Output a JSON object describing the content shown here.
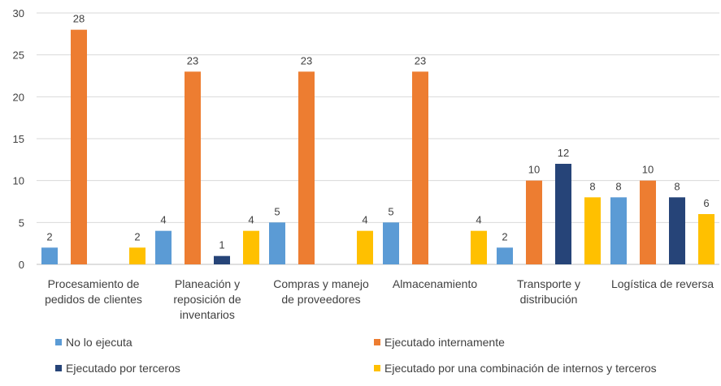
{
  "chart_data": {
    "type": "bar",
    "title": "",
    "xlabel": "",
    "ylabel": "",
    "ylim": [
      0,
      30
    ],
    "yticks": [
      0,
      5,
      10,
      15,
      20,
      25,
      30
    ],
    "grid": true,
    "legend_position": "bottom",
    "categories": [
      [
        "Procesamiento de",
        "pedidos de clientes"
      ],
      [
        "Planeación y",
        "reposición de",
        "inventarios"
      ],
      [
        "Compras y manejo",
        "de proveedores"
      ],
      [
        "Almacenamiento"
      ],
      [
        "Transporte y",
        "distribución"
      ],
      [
        "Logística de reversa"
      ]
    ],
    "series": [
      {
        "name": "No lo ejecuta",
        "color": "#5b9bd5",
        "values": [
          2,
          4,
          5,
          5,
          2,
          8
        ]
      },
      {
        "name": "Ejecutado internamente",
        "color": "#ed7d31",
        "values": [
          28,
          23,
          23,
          23,
          10,
          10
        ]
      },
      {
        "name": "Ejecutado por terceros",
        "color": "#264478",
        "values": [
          null,
          1,
          null,
          null,
          12,
          8
        ]
      },
      {
        "name": "Ejecutado por una combinación de internos y terceros",
        "color": "#ffc000",
        "values": [
          2,
          4,
          4,
          4,
          8,
          6
        ]
      }
    ]
  }
}
